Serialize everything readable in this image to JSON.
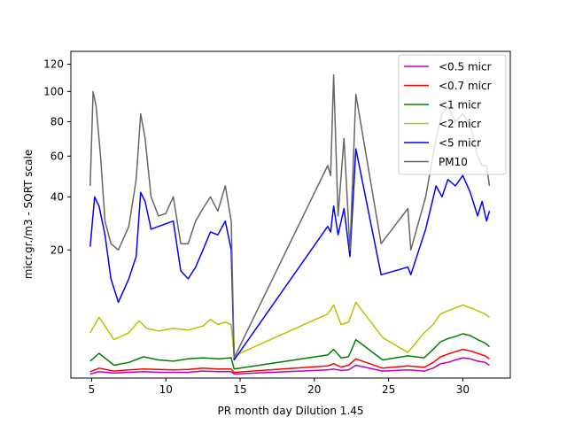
{
  "chart_data": {
    "type": "line",
    "title": "",
    "xlabel": "PR month day  Dilution 1.45",
    "ylabel": "micr.gr./m3 - SQRT scale",
    "y_scale": "sqrt",
    "xlim": [
      3.6,
      33.2
    ],
    "ylim": [
      0,
      130
    ],
    "x_ticks": [
      5,
      10,
      15,
      20,
      25,
      30
    ],
    "x_tick_labels": [
      "5",
      "10",
      "15",
      "20",
      "25",
      "30"
    ],
    "y_ticks": [
      20,
      40,
      60,
      80,
      100,
      120
    ],
    "y_tick_labels": [
      "20",
      "40",
      "60",
      "80",
      "100",
      "120"
    ],
    "grid": false,
    "legend_position": "top-right",
    "series": [
      {
        "name": "<0.5 micr",
        "color": "#bf00bf",
        "x": [
          4.9,
          5.5,
          6.5,
          7.5,
          8.5,
          9.5,
          10.5,
          11.5,
          12.5,
          13.5,
          14.4,
          14.6,
          20.9,
          21.3,
          21.8,
          22.3,
          22.8,
          24.6,
          26.3,
          27.4,
          28.0,
          28.5,
          29.0,
          29.5,
          30.0,
          30.5,
          31.0,
          31.5,
          31.8
        ],
        "y": [
          0.02,
          0.05,
          0.03,
          0.04,
          0.05,
          0.04,
          0.04,
          0.04,
          0.06,
          0.05,
          0.05,
          0.02,
          0.08,
          0.1,
          0.07,
          0.08,
          0.2,
          0.06,
          0.08,
          0.06,
          0.12,
          0.25,
          0.3,
          0.4,
          0.5,
          0.45,
          0.35,
          0.3,
          0.2
        ]
      },
      {
        "name": "<0.7 micr",
        "color": "#ff0000",
        "x": [
          4.9,
          5.5,
          6.5,
          7.5,
          8.5,
          9.5,
          10.5,
          11.5,
          12.5,
          13.5,
          14.4,
          14.6,
          20.9,
          21.3,
          21.8,
          22.3,
          22.8,
          24.6,
          26.3,
          27.4,
          28.0,
          28.5,
          29.0,
          29.5,
          30.0,
          30.5,
          31.0,
          31.5,
          31.8
        ],
        "y": [
          0.05,
          0.12,
          0.06,
          0.08,
          0.1,
          0.09,
          0.08,
          0.09,
          0.12,
          0.1,
          0.1,
          0.04,
          0.18,
          0.25,
          0.15,
          0.2,
          0.45,
          0.12,
          0.18,
          0.14,
          0.3,
          0.55,
          0.7,
          0.85,
          1.0,
          0.9,
          0.75,
          0.6,
          0.45
        ]
      },
      {
        "name": "<1 micr",
        "color": "#008000",
        "x": [
          4.9,
          5.5,
          6.5,
          7.5,
          8.5,
          9.5,
          10.5,
          11.5,
          12.5,
          13.5,
          14.4,
          14.6,
          20.9,
          21.3,
          21.8,
          22.3,
          22.8,
          24.6,
          26.3,
          27.4,
          28.0,
          28.5,
          29.0,
          29.5,
          30.0,
          30.5,
          31.0,
          31.5,
          31.8
        ],
        "y": [
          0.35,
          0.75,
          0.2,
          0.3,
          0.55,
          0.4,
          0.35,
          0.45,
          0.5,
          0.45,
          0.5,
          0.1,
          0.65,
          1.0,
          0.5,
          0.55,
          1.8,
          0.4,
          0.6,
          0.5,
          1.0,
          1.6,
          1.9,
          2.1,
          2.4,
          2.2,
          1.8,
          1.5,
          1.2
        ]
      },
      {
        "name": "<2 micr",
        "color": "#bfbf00",
        "x": [
          4.9,
          5.5,
          6.0,
          6.5,
          7.5,
          8.2,
          8.7,
          9.5,
          10.5,
          11.5,
          12.5,
          13.0,
          13.5,
          14.0,
          14.4,
          14.6,
          20.9,
          21.3,
          21.8,
          22.3,
          22.8,
          24.6,
          26.3,
          27.4,
          28.0,
          28.5,
          29.0,
          29.5,
          30.0,
          30.5,
          31.0,
          31.5,
          31.8
        ],
        "y": [
          2.5,
          4.5,
          3.0,
          1.8,
          2.5,
          4.0,
          3.0,
          2.7,
          3.0,
          2.8,
          3.3,
          4.2,
          3.5,
          3.8,
          3.5,
          0.6,
          5.0,
          6.5,
          3.5,
          3.8,
          7.0,
          2.0,
          0.8,
          2.5,
          3.5,
          5.0,
          5.5,
          6.0,
          6.5,
          6.0,
          5.5,
          5.0,
          4.5
        ]
      },
      {
        "name": "<5 micr",
        "color": "#0000ff",
        "x": [
          4.9,
          5.2,
          5.5,
          5.9,
          6.3,
          6.8,
          7.5,
          8.0,
          8.3,
          8.6,
          9.0,
          9.5,
          10.0,
          10.5,
          11.0,
          11.5,
          12.0,
          12.5,
          13.0,
          13.5,
          14.0,
          14.4,
          14.6,
          20.9,
          21.1,
          21.3,
          21.6,
          22.0,
          22.4,
          22.8,
          24.5,
          26.3,
          26.5,
          27.5,
          28.2,
          28.6,
          29.0,
          29.5,
          30.0,
          30.5,
          31.0,
          31.3,
          31.6,
          31.8
        ],
        "y": [
          21,
          40,
          36,
          25,
          12,
          7,
          12,
          18,
          42,
          38,
          27,
          28,
          29,
          30,
          14,
          12,
          15,
          20,
          26,
          25,
          30,
          20,
          0.4,
          28,
          26,
          36,
          25,
          35,
          18,
          64,
          13,
          15,
          13,
          27,
          45,
          40,
          48,
          45,
          50,
          42,
          32,
          38,
          30,
          34
        ]
      },
      {
        "name": "PM10",
        "color": "#666666",
        "x": [
          4.9,
          5.1,
          5.3,
          5.6,
          5.9,
          6.3,
          6.8,
          7.5,
          8.0,
          8.3,
          8.6,
          9.0,
          9.5,
          10.0,
          10.5,
          11.0,
          11.5,
          12.0,
          12.5,
          13.0,
          13.5,
          14.0,
          14.4,
          14.6,
          20.9,
          21.1,
          21.3,
          21.6,
          22.0,
          22.4,
          22.8,
          24.5,
          26.3,
          26.5,
          27.5,
          28.2,
          28.6,
          29.0,
          29.5,
          30.0,
          30.5,
          31.0,
          31.3,
          31.6,
          31.8
        ],
        "y": [
          45,
          100,
          90,
          60,
          30,
          22,
          20,
          28,
          48,
          85,
          70,
          40,
          32,
          33,
          40,
          22,
          22,
          30,
          35,
          40,
          34,
          45,
          30,
          0.5,
          55,
          50,
          112,
          32,
          70,
          20,
          98,
          22,
          35,
          20,
          40,
          70,
          85,
          90,
          80,
          85,
          78,
          60,
          55,
          55,
          45
        ]
      }
    ]
  }
}
